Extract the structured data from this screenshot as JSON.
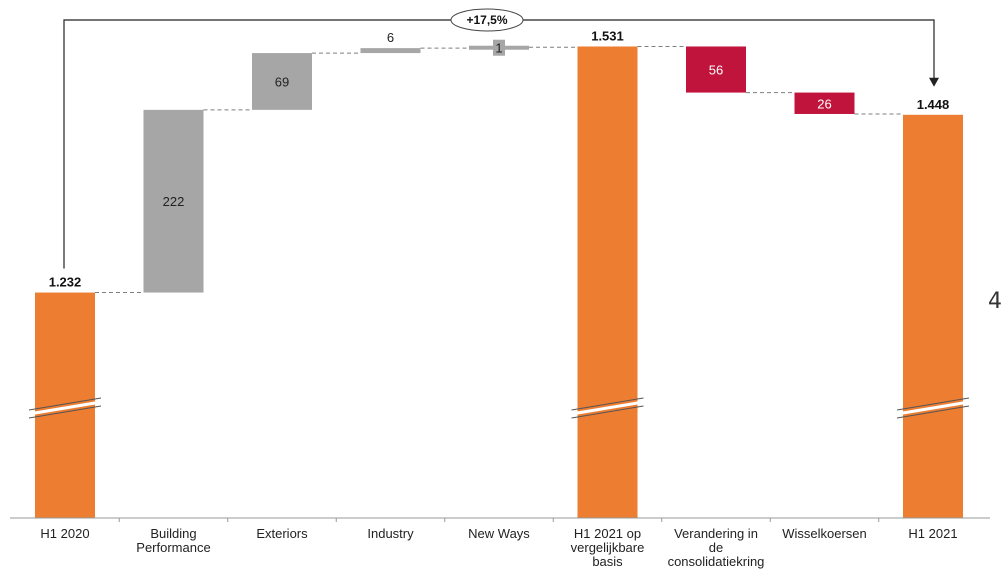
{
  "chart_data": {
    "type": "bar",
    "subtype": "waterfall",
    "categories": [
      "H1 2020",
      "Building Performance",
      "Exteriors",
      "Industry",
      "New Ways",
      "H1 2021 op vergelijkbare basis",
      "Verandering in de consolidatiekring",
      "Wisselkoersen",
      "H1 2021"
    ],
    "category_lines": [
      [
        "H1 2020"
      ],
      [
        "Building",
        "Performance"
      ],
      [
        "Exteriors"
      ],
      [
        "Industry"
      ],
      [
        "New Ways"
      ],
      [
        "H1 2021 op",
        "vergelijkbare",
        "basis"
      ],
      [
        "Verandering in",
        "de",
        "consolidatiekring"
      ],
      [
        "Wisselkoersen"
      ],
      [
        "H1 2021"
      ]
    ],
    "steps": [
      {
        "kind": "total",
        "value": 1232,
        "label": "1.232"
      },
      {
        "kind": "increase",
        "value": 222,
        "label": "222"
      },
      {
        "kind": "increase",
        "value": 69,
        "label": "69"
      },
      {
        "kind": "increase",
        "value": 6,
        "label": "6"
      },
      {
        "kind": "increase",
        "value": 1,
        "label": "1"
      },
      {
        "kind": "total",
        "value": 1531,
        "label": "1.531"
      },
      {
        "kind": "decrease",
        "value": 56,
        "label": "56"
      },
      {
        "kind": "decrease",
        "value": 26,
        "label": "26"
      },
      {
        "kind": "total",
        "value": 1448,
        "label": "1.448"
      }
    ],
    "growth_annotation": {
      "from": "H1 2020",
      "to": "H1 2021",
      "label": "+17,5%"
    },
    "axis_break": true,
    "colors": {
      "total": "#ED7D31",
      "increase": "#A6A6A6",
      "decrease": "#C0143C",
      "connector": "#7F7F7F",
      "break": "#FFFFFF"
    },
    "edge_text": "4"
  }
}
